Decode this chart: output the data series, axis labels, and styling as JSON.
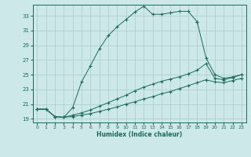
{
  "xlabel": "Humidex (Indice chaleur)",
  "bg_color": "#cce8e8",
  "grid_color": "#aacccc",
  "line_color": "#1a6b5a",
  "xlim": [
    -0.5,
    23.5
  ],
  "ylim": [
    18.5,
    34.5
  ],
  "yticks": [
    19,
    21,
    23,
    25,
    27,
    29,
    31,
    33
  ],
  "xticks": [
    0,
    1,
    2,
    3,
    4,
    5,
    6,
    7,
    8,
    9,
    10,
    11,
    12,
    13,
    14,
    15,
    16,
    17,
    18,
    19,
    20,
    21,
    22,
    23
  ],
  "s1_x": [
    0,
    1,
    2,
    3,
    4,
    5,
    6,
    7,
    8,
    9,
    10,
    11,
    12,
    13,
    14,
    15,
    16,
    17,
    18
  ],
  "s1_y": [
    20.3,
    20.3,
    19.3,
    19.2,
    20.5,
    24.0,
    26.2,
    28.5,
    30.3,
    31.5,
    32.5,
    33.5,
    34.3,
    33.2,
    33.2,
    33.4,
    33.6,
    33.6,
    32.2
  ],
  "s2_x": [
    18,
    19,
    20,
    21,
    22,
    23
  ],
  "s2_y": [
    32.2,
    27.3,
    25.0,
    24.5,
    24.7,
    25.0
  ],
  "s3_x": [
    0,
    1,
    2,
    3,
    4,
    5,
    6,
    7,
    8,
    9,
    10,
    11,
    12,
    13,
    14,
    15,
    16,
    17,
    18,
    19,
    20,
    21,
    22,
    23
  ],
  "s3_y": [
    20.3,
    20.3,
    19.3,
    19.2,
    19.5,
    19.8,
    20.2,
    20.7,
    21.2,
    21.7,
    22.2,
    22.8,
    23.3,
    23.7,
    24.1,
    24.4,
    24.7,
    25.1,
    25.6,
    26.5,
    24.5,
    24.3,
    24.6,
    25.0
  ],
  "s4_x": [
    0,
    1,
    2,
    3,
    4,
    5,
    6,
    7,
    8,
    9,
    10,
    11,
    12,
    13,
    14,
    15,
    16,
    17,
    18,
    19,
    20,
    21,
    22,
    23
  ],
  "s4_y": [
    20.3,
    20.3,
    19.3,
    19.2,
    19.3,
    19.5,
    19.7,
    20.0,
    20.3,
    20.6,
    21.0,
    21.3,
    21.7,
    22.0,
    22.4,
    22.7,
    23.1,
    23.5,
    23.9,
    24.3,
    24.0,
    23.9,
    24.2,
    24.5
  ]
}
